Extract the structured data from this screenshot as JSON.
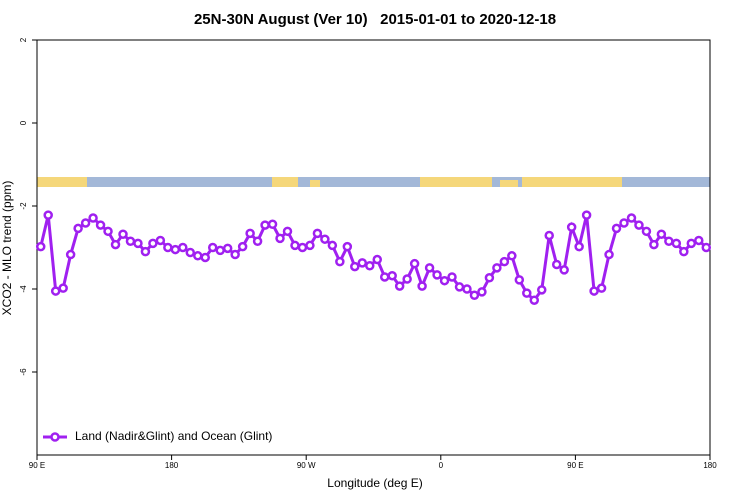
{
  "chart_data": {
    "type": "line",
    "title": "25N-30N August (Ver 10)   2015-01-01 to 2020-12-18",
    "x_label": "Longitude (deg E)",
    "y_label": "XCO2 - MLO trend (ppm)",
    "xlim": [
      90,
      540
    ],
    "ylim": [
      -8,
      2
    ],
    "xticks": [
      {
        "value": 90,
        "label": "90 E"
      },
      180,
      {
        "value": 270,
        "label": "90 W"
      },
      {
        "value": 360,
        "label": "0"
      },
      {
        "value": 450,
        "label": "90 E"
      },
      {
        "value": 540,
        "label": "180"
      }
    ],
    "yticks": [
      -6,
      -4,
      -2,
      0,
      2
    ],
    "legend": "bottomleft",
    "x": [
      92.5,
      97.5,
      102.5,
      107.5,
      112.5,
      117.5,
      122.5,
      127.5,
      132.5,
      137.5,
      142.5,
      147.5,
      152.5,
      157.5,
      162.5,
      167.5,
      172.5,
      177.5,
      182.5,
      187.5,
      192.5,
      197.5,
      202.5,
      207.5,
      212.5,
      217.5,
      222.5,
      227.5,
      232.5,
      237.5,
      242.5,
      247.5,
      252.5,
      257.5,
      262.5,
      267.5,
      272.5,
      277.5,
      282.5,
      287.5,
      292.5,
      297.5,
      302.5,
      307.5,
      312.5,
      317.5,
      322.5,
      327.5,
      332.5,
      337.5,
      342.5,
      347.5,
      352.5,
      357.5,
      362.5,
      367.5,
      372.5,
      377.5,
      382.5,
      387.5,
      392.5,
      397.5,
      402.5,
      407.5,
      412.5,
      417.5,
      422.5,
      427.5,
      432.5,
      437.5,
      442.5,
      447.5,
      452.5,
      457.5,
      462.5,
      467.5,
      472.5,
      477.5,
      482.5,
      487.5,
      492.5,
      497.5,
      502.5,
      507.5,
      512.5,
      517.5,
      522.5,
      527.5,
      532.5,
      537.5
    ],
    "series": [
      {
        "name": "Land (Nadir&Glint) and Ocean (Glint)",
        "color": "#a020f0",
        "values": [
          -2.98,
          -2.22,
          -4.05,
          -3.98,
          -3.17,
          -2.54,
          -2.41,
          -2.29,
          -2.46,
          -2.61,
          -2.93,
          -2.68,
          -2.85,
          -2.9,
          -3.1,
          -2.9,
          -2.83,
          -3.0,
          -3.05,
          -3.0,
          -3.12,
          -3.2,
          -3.24,
          -3.0,
          -3.07,
          -3.02,
          -3.17,
          -2.98,
          -2.66,
          -2.85,
          -2.46,
          -2.44,
          -2.78,
          -2.61,
          -2.95,
          -3.0,
          -2.95,
          -2.66,
          -2.8,
          -2.95,
          -3.34,
          -2.98,
          -3.46,
          -3.37,
          -3.44,
          -3.29,
          -3.71,
          -3.68,
          -3.93,
          -3.76,
          -3.39,
          -3.93,
          -3.49,
          -3.66,
          -3.8,
          -3.71,
          -3.95,
          -4.0,
          -4.15,
          -4.07,
          -3.73,
          -3.49,
          -3.34,
          -3.2,
          -3.78,
          -4.1,
          -4.27,
          -4.02,
          -2.71,
          -3.41,
          -3.54,
          -2.51,
          -2.98,
          -2.22,
          -4.05,
          -3.98,
          -3.17,
          -2.54,
          -2.41,
          -2.29,
          -2.46,
          -2.61,
          -2.93,
          -2.68,
          -2.85,
          -2.9,
          -3.1,
          -2.9,
          -2.83,
          -3.0
        ]
      }
    ]
  }
}
